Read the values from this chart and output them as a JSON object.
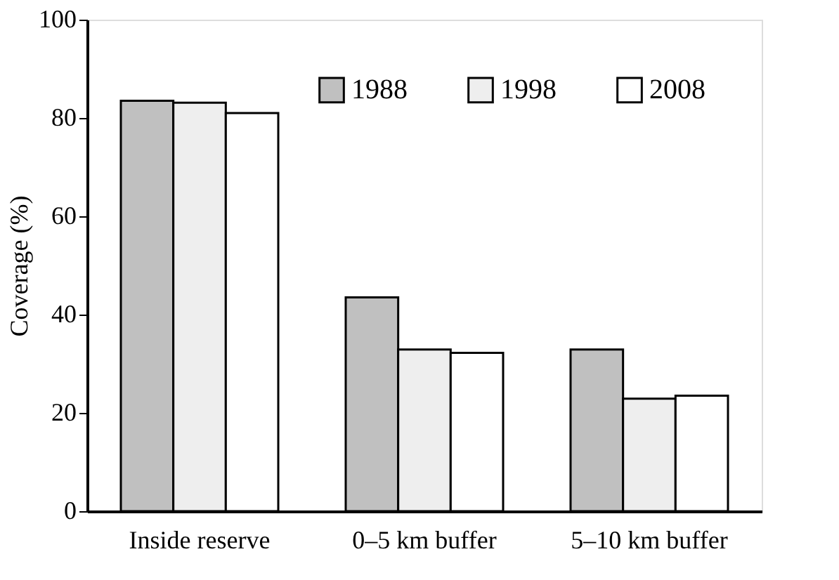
{
  "chart_data": {
    "type": "bar",
    "ylabel": "Coverage (%)",
    "categories": [
      "Inside reserve",
      "0–5 km buffer",
      "5–10 km buffer"
    ],
    "series": [
      {
        "name": "1988",
        "color": "#c0c0c0",
        "values": [
          83.5,
          43.5,
          32.9
        ]
      },
      {
        "name": "1998",
        "color": "#eeeeee",
        "values": [
          83.1,
          32.9,
          22.9
        ]
      },
      {
        "name": "2008",
        "color": "#ffffff",
        "values": [
          81.0,
          32.2,
          23.5
        ]
      }
    ],
    "ylim": [
      0,
      100
    ],
    "yticks": [
      0,
      20,
      40,
      60,
      80,
      100
    ],
    "grid": false,
    "legend": "top right"
  }
}
